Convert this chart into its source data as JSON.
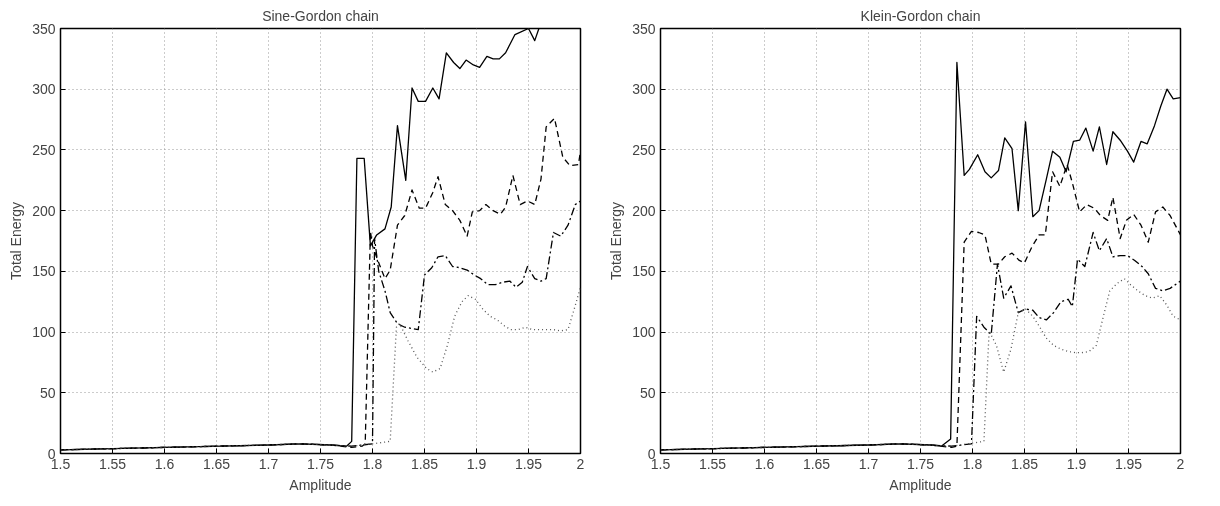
{
  "chart_data": [
    {
      "type": "line",
      "title": "Sine-Gordon chain",
      "xlabel": "Amplitude",
      "ylabel": "Total Energy",
      "xlim": [
        1.5,
        2
      ],
      "ylim": [
        0,
        350
      ],
      "xticks": [
        1.5,
        1.55,
        1.6,
        1.65,
        1.7,
        1.75,
        1.8,
        1.85,
        1.9,
        1.95,
        2
      ],
      "yticks": [
        0,
        50,
        100,
        150,
        200,
        250,
        300,
        350
      ],
      "grid": true,
      "series": [
        {
          "color": "#000000",
          "line_style": "solid",
          "x": [
            1.5,
            1.6,
            1.7,
            1.73,
            1.76,
            1.775,
            1.78,
            1.785,
            1.792,
            1.798,
            1.804,
            1.812,
            1.818,
            1.824,
            1.832,
            1.838,
            1.844,
            1.851,
            1.858,
            1.864,
            1.871,
            1.878,
            1.884,
            1.89,
            1.897,
            1.903,
            1.91,
            1.916,
            1.922,
            1.928,
            1.937,
            1.95,
            1.956,
            1.96
          ],
          "values": [
            3,
            5,
            7,
            8,
            7,
            6,
            10,
            243,
            243,
            171,
            180,
            185,
            203,
            270,
            225,
            301,
            290,
            290,
            301,
            292,
            330,
            322,
            317,
            324,
            320,
            318,
            327,
            325,
            325,
            330,
            345,
            350,
            340,
            350
          ]
        },
        {
          "color": "#000000",
          "line_style": "dashed",
          "x": [
            1.5,
            1.6,
            1.7,
            1.73,
            1.76,
            1.78,
            1.79,
            1.793,
            1.798,
            1.8,
            1.806,
            1.812,
            1.817,
            1.824,
            1.831,
            1.838,
            1.845,
            1.851,
            1.858,
            1.863,
            1.87,
            1.877,
            1.884,
            1.891,
            1.896,
            1.903,
            1.909,
            1.916,
            1.923,
            1.928,
            1.935,
            1.942,
            1.949,
            1.956,
            1.962,
            1.967,
            1.975,
            1.983,
            1.99,
            1.998,
            2.0
          ],
          "values": [
            3,
            5,
            7,
            8,
            7,
            5,
            6,
            8,
            183,
            171,
            157,
            144,
            151,
            188,
            196,
            217,
            202,
            202,
            215,
            228,
            205,
            200,
            192,
            179,
            199,
            200,
            205,
            200,
            197,
            203,
            229,
            205,
            208,
            205,
            226,
            269,
            276,
            244,
            237,
            238,
            249
          ]
        },
        {
          "color": "#000000",
          "line_style": "dashdot",
          "x": [
            1.5,
            1.6,
            1.7,
            1.73,
            1.76,
            1.78,
            1.8,
            1.802,
            1.806,
            1.812,
            1.817,
            1.824,
            1.831,
            1.844,
            1.85,
            1.857,
            1.863,
            1.87,
            1.877,
            1.884,
            1.891,
            1.898,
            1.904,
            1.911,
            1.918,
            1.925,
            1.932,
            1.938,
            1.944,
            1.949,
            1.956,
            1.962,
            1.967,
            1.974,
            1.981,
            1.988,
            1.995,
            2.0
          ],
          "values": [
            3,
            5,
            7,
            8,
            7,
            6,
            8,
            177,
            150,
            134,
            116,
            107,
            104,
            102,
            147,
            153,
            162,
            163,
            154,
            153,
            151,
            147,
            144,
            139,
            139,
            141,
            142,
            137,
            141,
            154,
            144,
            142,
            144,
            182,
            179,
            188,
            205,
            208
          ]
        },
        {
          "color": "#555555",
          "line_style": "dotted",
          "x": [
            1.5,
            1.6,
            1.7,
            1.73,
            1.76,
            1.78,
            1.8,
            1.817,
            1.823,
            1.826,
            1.834,
            1.843,
            1.852,
            1.858,
            1.865,
            1.872,
            1.879,
            1.886,
            1.892,
            1.899,
            1.906,
            1.913,
            1.92,
            1.927,
            1.933,
            1.94,
            1.947,
            1.954,
            1.961,
            1.967,
            1.974,
            1.981,
            1.988,
            1.995,
            2.0
          ],
          "values": [
            3,
            5,
            7,
            8,
            7,
            6,
            8,
            10,
            104,
            107,
            93,
            79,
            70,
            67,
            70,
            89,
            113,
            125,
            130,
            127,
            119,
            113,
            110,
            105,
            102,
            102,
            104,
            102,
            102,
            102,
            102,
            101,
            102,
            122,
            137
          ]
        }
      ]
    },
    {
      "type": "line",
      "title": "Klein-Gordon chain",
      "xlabel": "Amplitude",
      "ylabel": "Total Energy",
      "xlim": [
        1.5,
        2
      ],
      "ylim": [
        0,
        350
      ],
      "xticks": [
        1.5,
        1.55,
        1.6,
        1.65,
        1.7,
        1.75,
        1.8,
        1.85,
        1.9,
        1.95,
        2
      ],
      "yticks": [
        0,
        50,
        100,
        150,
        200,
        250,
        300,
        350
      ],
      "grid": true,
      "series": [
        {
          "color": "#000000",
          "line_style": "solid",
          "x": [
            1.5,
            1.6,
            1.7,
            1.73,
            1.76,
            1.77,
            1.779,
            1.785,
            1.792,
            1.797,
            1.805,
            1.812,
            1.818,
            1.825,
            1.831,
            1.838,
            1.844,
            1.851,
            1.858,
            1.864,
            1.871,
            1.877,
            1.884,
            1.89,
            1.897,
            1.903,
            1.909,
            1.916,
            1.922,
            1.929,
            1.935,
            1.942,
            1.949,
            1.955,
            1.962,
            1.968,
            1.975,
            1.981,
            1.987,
            1.993,
            2.0
          ],
          "values": [
            3,
            5,
            7,
            8,
            7,
            6,
            12,
            322,
            229,
            234,
            246,
            232,
            227,
            233,
            260,
            251,
            200,
            273,
            195,
            200,
            226,
            249,
            244,
            232,
            257,
            258,
            268,
            249,
            269,
            238,
            265,
            258,
            249,
            240,
            257,
            255,
            270,
            286,
            300,
            292,
            293
          ]
        },
        {
          "color": "#000000",
          "line_style": "dashed",
          "x": [
            1.5,
            1.6,
            1.7,
            1.73,
            1.76,
            1.78,
            1.785,
            1.792,
            1.799,
            1.806,
            1.812,
            1.818,
            1.825,
            1.831,
            1.838,
            1.845,
            1.85,
            1.857,
            1.864,
            1.87,
            1.877,
            1.884,
            1.891,
            1.896,
            1.903,
            1.91,
            1.917,
            1.923,
            1.93,
            1.935,
            1.942,
            1.948,
            1.955,
            1.962,
            1.969,
            1.976,
            1.983,
            1.99,
            2.0
          ],
          "values": [
            3,
            5,
            7,
            8,
            7,
            5,
            6,
            174,
            183,
            182,
            180,
            156,
            156,
            162,
            165,
            159,
            157,
            170,
            180,
            180,
            232,
            220,
            238,
            223,
            199,
            205,
            202,
            196,
            192,
            211,
            177,
            192,
            197,
            188,
            174,
            199,
            203,
            196,
            180
          ]
        },
        {
          "color": "#000000",
          "line_style": "dashdot",
          "x": [
            1.5,
            1.6,
            1.7,
            1.73,
            1.76,
            1.78,
            1.799,
            1.804,
            1.811,
            1.818,
            1.824,
            1.83,
            1.837,
            1.844,
            1.851,
            1.858,
            1.864,
            1.871,
            1.878,
            1.885,
            1.892,
            1.896,
            1.901,
            1.908,
            1.916,
            1.922,
            1.929,
            1.935,
            1.942,
            1.949,
            1.956,
            1.963,
            1.969,
            1.976,
            1.983,
            1.99,
            2.0
          ],
          "values": [
            3,
            5,
            7,
            8,
            7,
            6,
            8,
            113,
            104,
            98,
            156,
            128,
            138,
            116,
            119,
            118,
            112,
            110,
            116,
            125,
            127,
            121,
            160,
            154,
            182,
            167,
            177,
            162,
            163,
            163,
            159,
            154,
            148,
            136,
            134,
            136,
            142
          ]
        },
        {
          "color": "#555555",
          "line_style": "dotted",
          "x": [
            1.5,
            1.6,
            1.7,
            1.73,
            1.76,
            1.78,
            1.811,
            1.816,
            1.823,
            1.83,
            1.837,
            1.844,
            1.851,
            1.858,
            1.864,
            1.871,
            1.878,
            1.885,
            1.892,
            1.899,
            1.905,
            1.912,
            1.919,
            1.925,
            1.932,
            1.939,
            1.946,
            1.952,
            1.959,
            1.966,
            1.973,
            1.98,
            1.987,
            1.993,
            2.0
          ],
          "values": [
            3,
            5,
            7,
            8,
            7,
            6,
            10,
            101,
            89,
            67,
            86,
            116,
            119,
            113,
            105,
            95,
            89,
            86,
            84,
            83,
            83,
            84,
            89,
            110,
            134,
            140,
            144,
            139,
            134,
            130,
            128,
            130,
            122,
            113,
            110
          ]
        }
      ]
    }
  ]
}
